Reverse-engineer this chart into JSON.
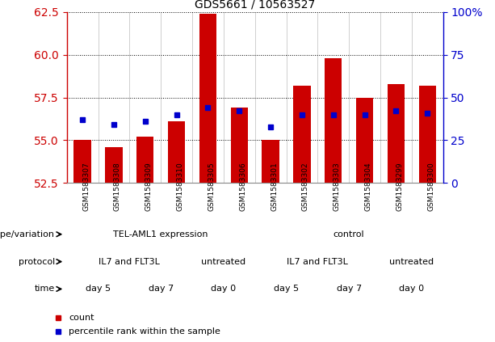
{
  "title": "GDS5661 / 10563527",
  "samples": [
    "GSM1583307",
    "GSM1583308",
    "GSM1583309",
    "GSM1583310",
    "GSM1583305",
    "GSM1583306",
    "GSM1583301",
    "GSM1583302",
    "GSM1583303",
    "GSM1583304",
    "GSM1583299",
    "GSM1583300"
  ],
  "count_values": [
    55.0,
    54.6,
    55.2,
    56.1,
    62.4,
    56.9,
    55.0,
    58.2,
    59.8,
    57.5,
    58.3,
    58.2
  ],
  "percentile_values": [
    56.2,
    55.9,
    56.1,
    56.5,
    56.9,
    56.7,
    55.8,
    56.5,
    56.5,
    56.5,
    56.7,
    56.6
  ],
  "ylim_left": [
    52.5,
    62.5
  ],
  "ylim_right": [
    0,
    100
  ],
  "yticks_left": [
    52.5,
    55.0,
    57.5,
    60.0,
    62.5
  ],
  "yticks_right": [
    0,
    25,
    50,
    75,
    100
  ],
  "bar_color": "#cc0000",
  "percentile_color": "#0000cc",
  "bar_bottom": 52.5,
  "sample_bg_color": "#d0d0d0",
  "genotype_row": {
    "label": "genotype/variation",
    "groups": [
      {
        "text": "TEL-AML1 expression",
        "start": 0,
        "end": 6,
        "color": "#88dd88"
      },
      {
        "text": "control",
        "start": 6,
        "end": 12,
        "color": "#55cc55"
      }
    ]
  },
  "protocol_row": {
    "label": "protocol",
    "groups": [
      {
        "text": "IL7 and FLT3L",
        "start": 0,
        "end": 4,
        "color": "#aaaaee"
      },
      {
        "text": "untreated",
        "start": 4,
        "end": 6,
        "color": "#8888cc"
      },
      {
        "text": "IL7 and FLT3L",
        "start": 6,
        "end": 10,
        "color": "#aaaaee"
      },
      {
        "text": "untreated",
        "start": 10,
        "end": 12,
        "color": "#8888cc"
      }
    ]
  },
  "time_row": {
    "label": "time",
    "groups": [
      {
        "text": "day 5",
        "start": 0,
        "end": 2,
        "color": "#ee9999"
      },
      {
        "text": "day 7",
        "start": 2,
        "end": 4,
        "color": "#dd6666"
      },
      {
        "text": "day 0",
        "start": 4,
        "end": 6,
        "color": "#ffcccc"
      },
      {
        "text": "day 5",
        "start": 6,
        "end": 8,
        "color": "#ee9999"
      },
      {
        "text": "day 7",
        "start": 8,
        "end": 10,
        "color": "#dd6666"
      },
      {
        "text": "day 0",
        "start": 10,
        "end": 12,
        "color": "#ffcccc"
      }
    ]
  },
  "legend_count_color": "#cc0000",
  "legend_percentile_color": "#0000cc",
  "bg_color": "#ffffff",
  "tick_label_color_left": "#cc0000",
  "tick_label_color_right": "#0000cc"
}
